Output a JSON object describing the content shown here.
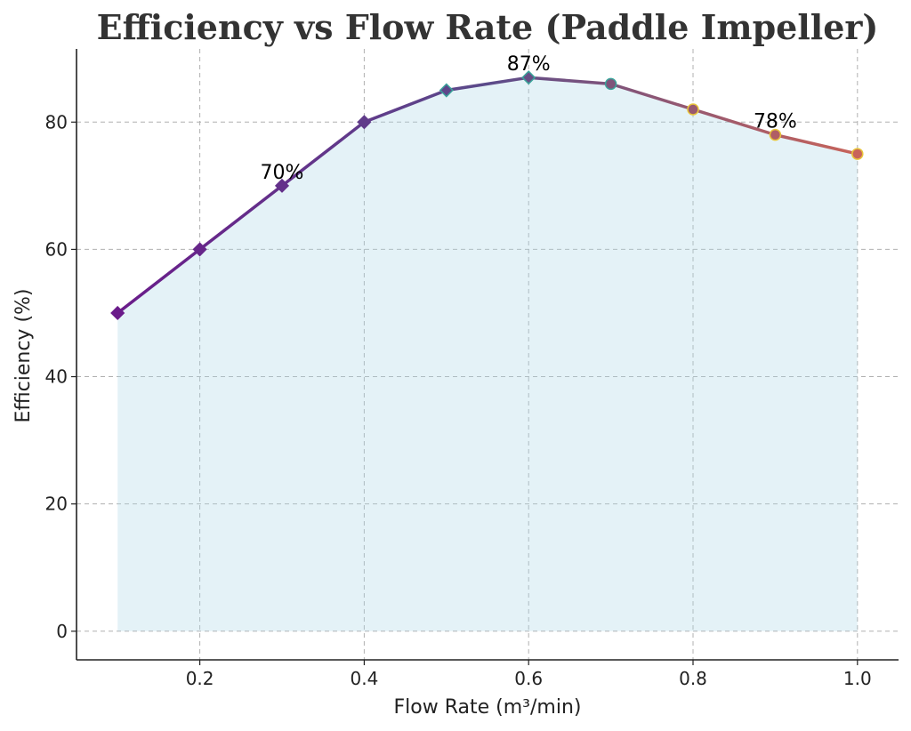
{
  "chart_data": {
    "type": "line",
    "title": "Efficiency vs Flow Rate (Paddle Impeller)",
    "xlabel": "Flow Rate (m³/min)",
    "ylabel": "Efficiency (%)",
    "x": [
      0.1,
      0.2,
      0.3,
      0.4,
      0.5,
      0.6,
      0.7,
      0.8,
      0.9,
      1.0
    ],
    "series": [
      {
        "values": [
          50,
          60,
          70,
          80,
          85,
          87,
          86,
          82,
          78,
          75
        ]
      }
    ],
    "xlim": [
      0.05,
      1.05
    ],
    "ylim": [
      -4.5,
      91.5
    ],
    "xticks": [
      0.2,
      0.4,
      0.6,
      0.8,
      1.0
    ],
    "xtick_labels": [
      "0.2",
      "0.4",
      "0.6",
      "0.8",
      "1.0"
    ],
    "yticks": [
      0,
      20,
      40,
      60,
      80
    ],
    "ytick_labels": [
      "0",
      "20",
      "40",
      "60",
      "80"
    ],
    "annotations": [
      {
        "x": 0.3,
        "y": 70,
        "text": "70%"
      },
      {
        "x": 0.6,
        "y": 87,
        "text": "87%"
      },
      {
        "x": 0.9,
        "y": 78,
        "text": "78%"
      }
    ],
    "grid": true,
    "fill_under": true,
    "colors": {
      "fill": "#add8e6",
      "line_start": "#6a1b8a",
      "line_mid": "#5b4b8a",
      "line_end": "#c8645a",
      "marker_edge_cool": "#3aa39a",
      "marker_edge_warm": "#e8c43a"
    }
  }
}
